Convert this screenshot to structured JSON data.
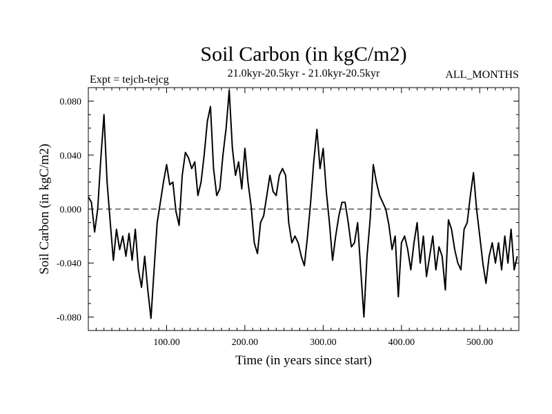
{
  "chart_data": {
    "type": "line",
    "title": "Soil Carbon (in kgC/m2)",
    "subtitle_left": "Expt = tejch-tejcg",
    "subtitle_center": "21.0kyr-20.5kyr - 21.0kyr-20.5kyr",
    "subtitle_right": "ALL_MONTHS",
    "xlabel": "Time (in years since start)",
    "ylabel": "Soil Carbon (in kgC/m2)",
    "xlim": [
      0,
      550
    ],
    "ylim": [
      -0.09,
      0.09
    ],
    "x_ticks": [
      100,
      200,
      300,
      400,
      500
    ],
    "x_tick_labels": [
      "100.00",
      "200.00",
      "300.00",
      "400.00",
      "500.00"
    ],
    "y_ticks": [
      -0.08,
      -0.04,
      0.0,
      0.04,
      0.08
    ],
    "y_tick_labels": [
      "-0.080",
      "-0.040",
      "0.000",
      "0.040",
      "0.080"
    ],
    "reference_line": 0.0,
    "series": [
      {
        "name": "Soil Carbon",
        "x": [
          0,
          4,
          8,
          12,
          16,
          20,
          24,
          28,
          32,
          36,
          40,
          44,
          48,
          52,
          56,
          60,
          64,
          68,
          72,
          76,
          80,
          84,
          88,
          92,
          96,
          100,
          104,
          108,
          112,
          116,
          120,
          124,
          128,
          132,
          136,
          140,
          144,
          148,
          152,
          156,
          160,
          164,
          168,
          172,
          176,
          180,
          184,
          188,
          192,
          196,
          200,
          204,
          208,
          212,
          216,
          220,
          224,
          228,
          232,
          236,
          240,
          244,
          248,
          252,
          256,
          260,
          264,
          268,
          272,
          276,
          280,
          284,
          288,
          292,
          296,
          300,
          304,
          308,
          312,
          316,
          320,
          324,
          328,
          332,
          336,
          340,
          344,
          348,
          352,
          356,
          360,
          364,
          368,
          372,
          376,
          380,
          384,
          388,
          392,
          396,
          400,
          404,
          408,
          412,
          416,
          420,
          424,
          428,
          432,
          436,
          440,
          444,
          448,
          452,
          456,
          460,
          464,
          468,
          472,
          476,
          480,
          484,
          488,
          492,
          496,
          500,
          504,
          508,
          512,
          516,
          520,
          524,
          528,
          532,
          536,
          540,
          544,
          548
        ],
        "values": [
          0.009,
          0.005,
          -0.017,
          0.0,
          0.038,
          0.07,
          0.02,
          -0.01,
          -0.038,
          -0.015,
          -0.03,
          -0.02,
          -0.035,
          -0.018,
          -0.038,
          -0.015,
          -0.045,
          -0.058,
          -0.035,
          -0.06,
          -0.081,
          -0.045,
          -0.01,
          0.005,
          0.02,
          0.033,
          0.018,
          0.02,
          -0.002,
          -0.012,
          0.025,
          0.042,
          0.038,
          0.03,
          0.035,
          0.01,
          0.02,
          0.04,
          0.065,
          0.076,
          0.03,
          0.01,
          0.015,
          0.04,
          0.06,
          0.088,
          0.045,
          0.025,
          0.035,
          0.015,
          0.045,
          0.02,
          0.002,
          -0.025,
          -0.033,
          -0.01,
          -0.005,
          0.01,
          0.025,
          0.013,
          0.01,
          0.025,
          0.03,
          0.025,
          -0.01,
          -0.025,
          -0.02,
          -0.025,
          -0.035,
          -0.042,
          -0.02,
          0.005,
          0.035,
          0.059,
          0.03,
          0.045,
          0.013,
          -0.01,
          -0.038,
          -0.02,
          -0.005,
          0.005,
          0.005,
          -0.01,
          -0.028,
          -0.025,
          -0.01,
          -0.045,
          -0.08,
          -0.035,
          -0.008,
          0.033,
          0.02,
          0.01,
          0.005,
          0.0,
          -0.012,
          -0.03,
          -0.02,
          -0.065,
          -0.025,
          -0.02,
          -0.03,
          -0.045,
          -0.025,
          -0.01,
          -0.04,
          -0.02,
          -0.05,
          -0.035,
          -0.02,
          -0.045,
          -0.028,
          -0.035,
          -0.06,
          -0.008,
          -0.015,
          -0.03,
          -0.04,
          -0.045,
          -0.015,
          -0.01,
          0.01,
          0.027,
          0.0,
          -0.02,
          -0.04,
          -0.055,
          -0.035,
          -0.025,
          -0.04,
          -0.025,
          -0.045,
          -0.02,
          -0.04,
          -0.015,
          -0.045,
          -0.035
        ]
      }
    ]
  }
}
